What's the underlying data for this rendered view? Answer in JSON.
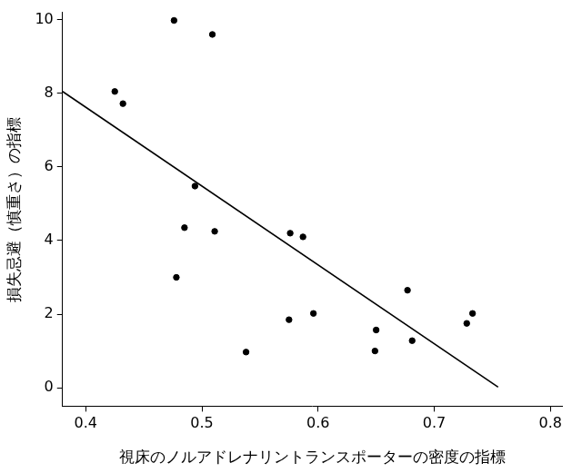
{
  "chart_data": {
    "type": "scatter",
    "x_label": "視床のノルアドレナリントランスポーターの密度の指標",
    "y_label": "損失忌避（慎重さ）の指標",
    "x": [
      0.425,
      0.432,
      0.476,
      0.478,
      0.485,
      0.494,
      0.509,
      0.511,
      0.538,
      0.575,
      0.576,
      0.587,
      0.596,
      0.649,
      0.65,
      0.677,
      0.681,
      0.728,
      0.733
    ],
    "values": [
      8.05,
      7.72,
      9.98,
      3.0,
      4.35,
      5.48,
      9.6,
      4.25,
      0.97,
      1.85,
      4.2,
      4.1,
      2.02,
      1.0,
      1.57,
      2.65,
      1.28,
      1.75,
      2.02
    ],
    "color": "#000000",
    "marker": "circle",
    "trend_line": {
      "x": [
        0.38,
        0.755
      ],
      "values": [
        8.05,
        0.02
      ],
      "color": "#000000",
      "line_style": "solid"
    },
    "xlim": [
      0.38,
      0.81
    ],
    "xticks": [
      0.4,
      0.5,
      0.6,
      0.7,
      0.8
    ],
    "ylim": [
      -0.5,
      10.2
    ],
    "yticks": [
      0,
      2,
      4,
      6,
      8,
      10
    ],
    "grid": false
  }
}
